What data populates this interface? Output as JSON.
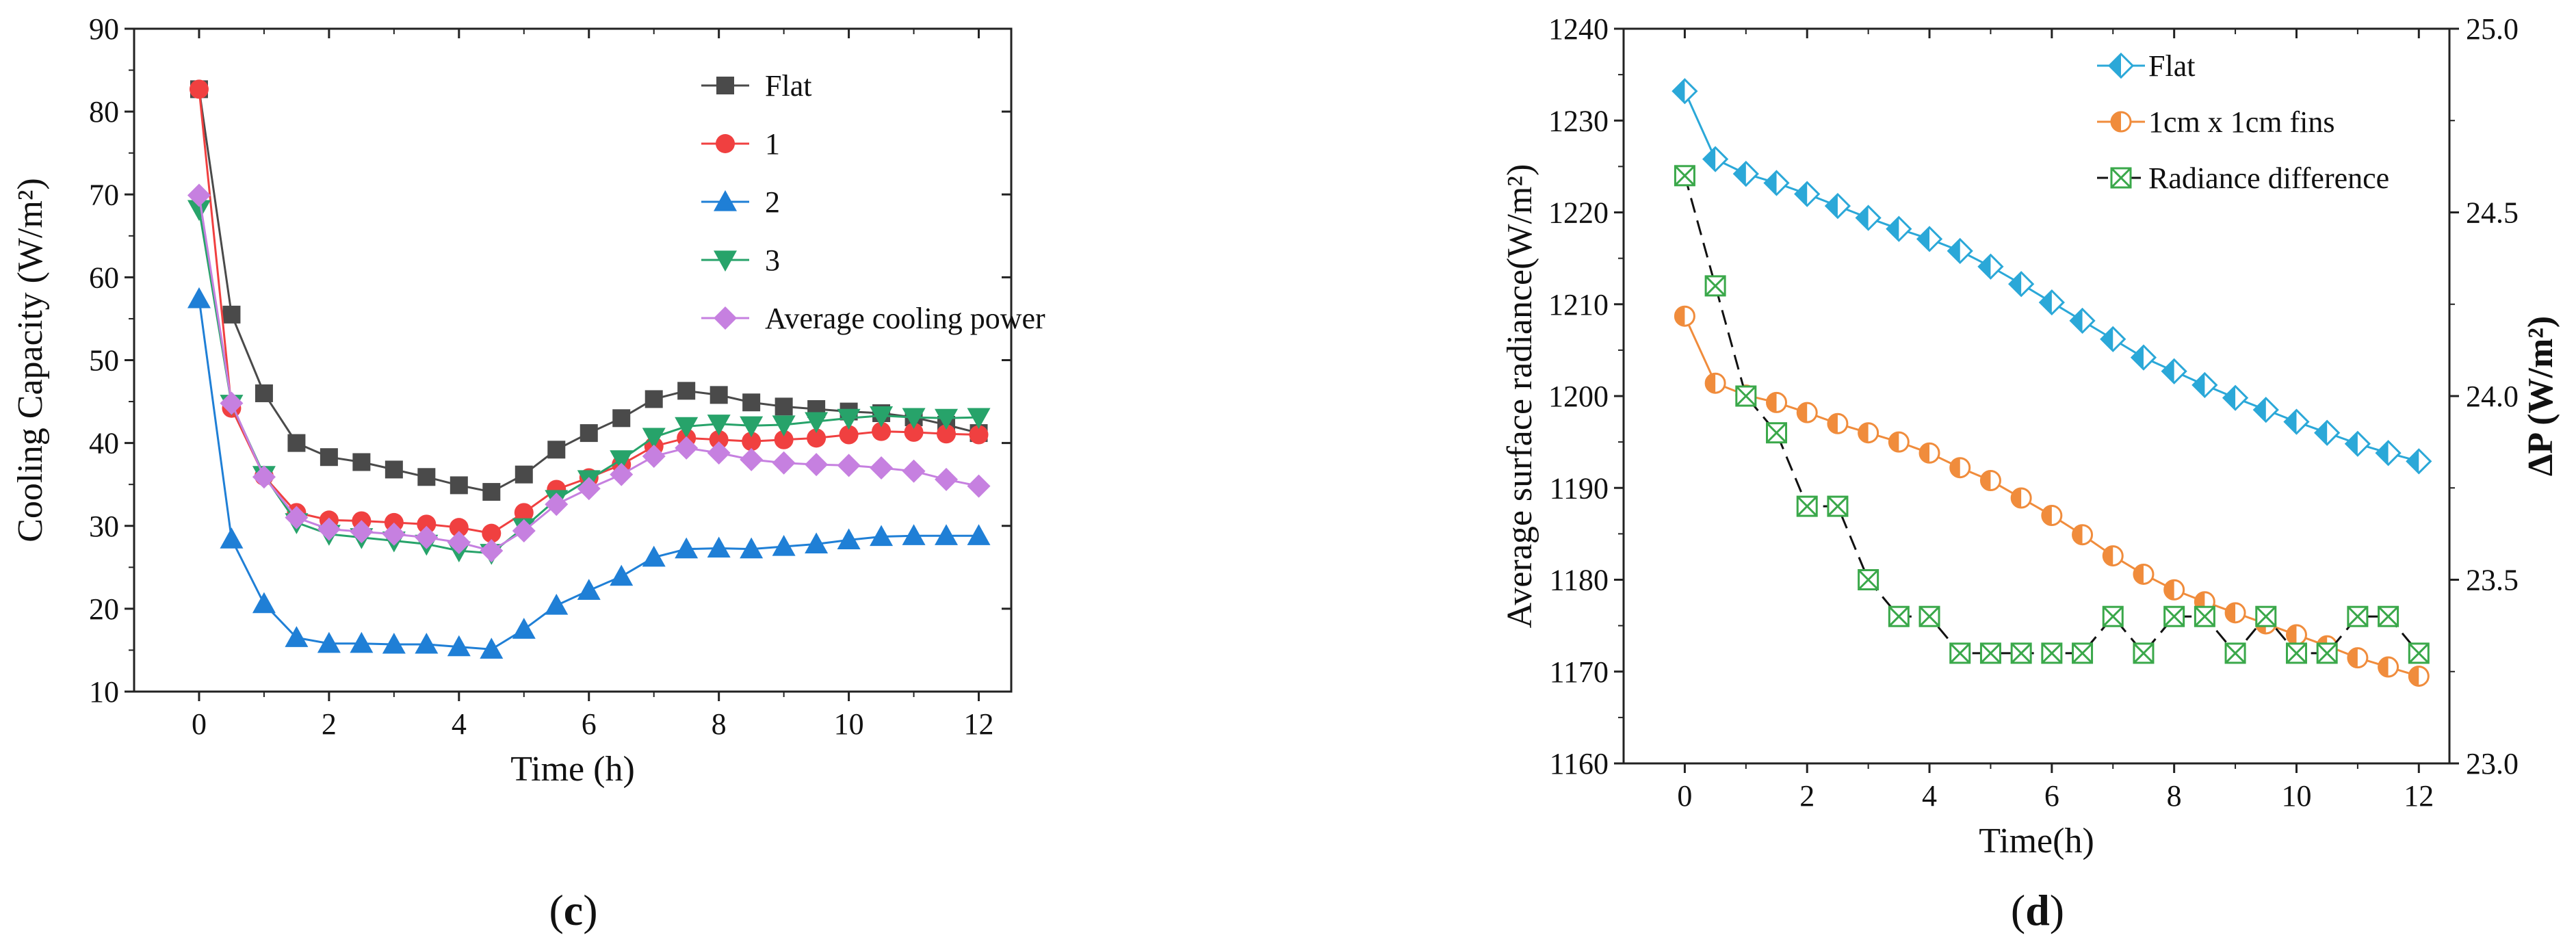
{
  "chart_data": [
    {
      "panel_label": "(c)",
      "panel_letter": "c",
      "type": "line",
      "xlabel": "Time (h)",
      "ylabel": "Cooling Capacity (W/m²)",
      "xlim": [
        -1,
        12.5
      ],
      "ylim": [
        10,
        90
      ],
      "xticks": [
        0,
        2,
        4,
        6,
        8,
        10,
        12
      ],
      "yticks": [
        10,
        20,
        30,
        40,
        50,
        60,
        70,
        80,
        90
      ],
      "x": [
        0,
        0.5,
        1,
        1.5,
        2,
        2.5,
        3,
        3.5,
        4,
        4.5,
        5,
        5.5,
        6,
        6.5,
        7,
        7.5,
        8,
        8.5,
        9,
        9.5,
        10,
        10.5,
        11,
        11.5,
        12
      ],
      "legend_position": "top-right",
      "series": [
        {
          "name": "Flat",
          "color": "#4a4a4a",
          "marker": "square",
          "values": [
            82.7,
            55.5,
            46,
            40,
            38.3,
            37.7,
            36.8,
            35.9,
            34.9,
            34.1,
            36.2,
            39.2,
            41.2,
            43,
            45.3,
            46.3,
            45.8,
            44.9,
            44.4,
            44.1,
            43.8,
            43.6,
            43.1,
            42.2,
            41.2
          ]
        },
        {
          "name": "1",
          "color": "#f04040",
          "marker": "circle",
          "values": [
            82.7,
            44.2,
            36,
            31.6,
            30.7,
            30.6,
            30.4,
            30.2,
            29.8,
            29.1,
            31.6,
            34.4,
            35.8,
            37.4,
            39.6,
            40.6,
            40.4,
            40.2,
            40.4,
            40.6,
            41,
            41.4,
            41.3,
            41.1,
            41
          ]
        },
        {
          "name": "2",
          "color": "#1f7fd6",
          "marker": "triangle-up",
          "values": [
            57.4,
            28.4,
            20.6,
            16.5,
            15.8,
            15.8,
            15.7,
            15.7,
            15.4,
            15.1,
            17.5,
            20.4,
            22.2,
            23.9,
            26.2,
            27.2,
            27.3,
            27.2,
            27.5,
            27.8,
            28.3,
            28.7,
            28.8,
            28.8,
            28.8
          ]
        },
        {
          "name": "3",
          "color": "#27a36a",
          "marker": "triangle-down",
          "values": [
            68.2,
            44.7,
            36.1,
            30.4,
            29,
            28.6,
            28.2,
            27.8,
            27,
            26.7,
            29.8,
            33.2,
            35.6,
            38,
            40.7,
            42,
            42.3,
            42.1,
            42.2,
            42.6,
            43,
            43.3,
            43.1,
            43,
            43.1
          ]
        },
        {
          "name": "Average cooling power",
          "color": "#c680e0",
          "marker": "diamond",
          "values": [
            69.9,
            44.8,
            35.9,
            31,
            29.6,
            29.3,
            29,
            28.6,
            28,
            27,
            29.4,
            32.6,
            34.5,
            36.2,
            38.4,
            39.4,
            38.8,
            38,
            37.6,
            37.4,
            37.3,
            37,
            36.6,
            35.6,
            34.8
          ]
        }
      ]
    },
    {
      "panel_label": "(d)",
      "panel_letter": "d",
      "type": "line",
      "xlabel": "Time(h)",
      "ylabel": "Average surface radiance(W/m²)",
      "ylabel_right": "ΔP (W/m²)",
      "xlim": [
        -1,
        12.5
      ],
      "ylim": [
        1160,
        1240
      ],
      "ylim_right": [
        23.0,
        25.0
      ],
      "xticks": [
        0,
        2,
        4,
        6,
        8,
        10,
        12
      ],
      "yticks": [
        1160,
        1170,
        1180,
        1190,
        1200,
        1210,
        1220,
        1230,
        1240
      ],
      "yticks_right": [
        "23.0",
        "23.5",
        "24.0",
        "24.5",
        "25.0"
      ],
      "x": [
        0,
        0.5,
        1,
        1.5,
        2,
        2.5,
        3,
        3.5,
        4,
        4.5,
        5,
        5.5,
        6,
        6.5,
        7,
        7.5,
        8,
        8.5,
        9,
        9.5,
        10,
        10.5,
        11,
        11.5,
        12
      ],
      "legend_position": "top-right",
      "series": [
        {
          "name": "Flat",
          "axis": "left",
          "color": "#2ba8d8",
          "marker": "diamond-half",
          "line": "solid",
          "values": [
            1233.2,
            1225.8,
            1224.2,
            1223.2,
            1222,
            1220.7,
            1219.4,
            1218.2,
            1217.1,
            1215.8,
            1214.1,
            1212.2,
            1210.2,
            1208.2,
            1206.2,
            1204.2,
            1202.7,
            1201.2,
            1199.8,
            1198.5,
            1197.2,
            1196,
            1194.8,
            1193.8,
            1192.9
          ]
        },
        {
          "name": "1cm x 1cm fins",
          "axis": "left",
          "color": "#f08c3c",
          "marker": "circle-half",
          "line": "solid",
          "values": [
            1208.7,
            1201.4,
            1200.1,
            1199.3,
            1198.2,
            1197,
            1196,
            1195,
            1193.8,
            1192.2,
            1190.8,
            1188.9,
            1187,
            1184.9,
            1182.6,
            1180.6,
            1178.9,
            1177.6,
            1176.4,
            1175.2,
            1174,
            1172.8,
            1171.5,
            1170.5,
            1169.5
          ]
        },
        {
          "name": "Radiance difference",
          "axis": "right",
          "color": "#3aa84a",
          "line_color": "#111111",
          "marker": "x-box",
          "line": "dashed",
          "values": [
            24.6,
            24.3,
            24.0,
            23.9,
            23.7,
            23.7,
            23.5,
            23.4,
            23.4,
            23.3,
            23.3,
            23.3,
            23.3,
            23.3,
            23.4,
            23.3,
            23.4,
            23.4,
            23.3,
            23.4,
            23.3,
            23.3,
            23.4,
            23.4,
            23.3
          ]
        }
      ]
    }
  ]
}
